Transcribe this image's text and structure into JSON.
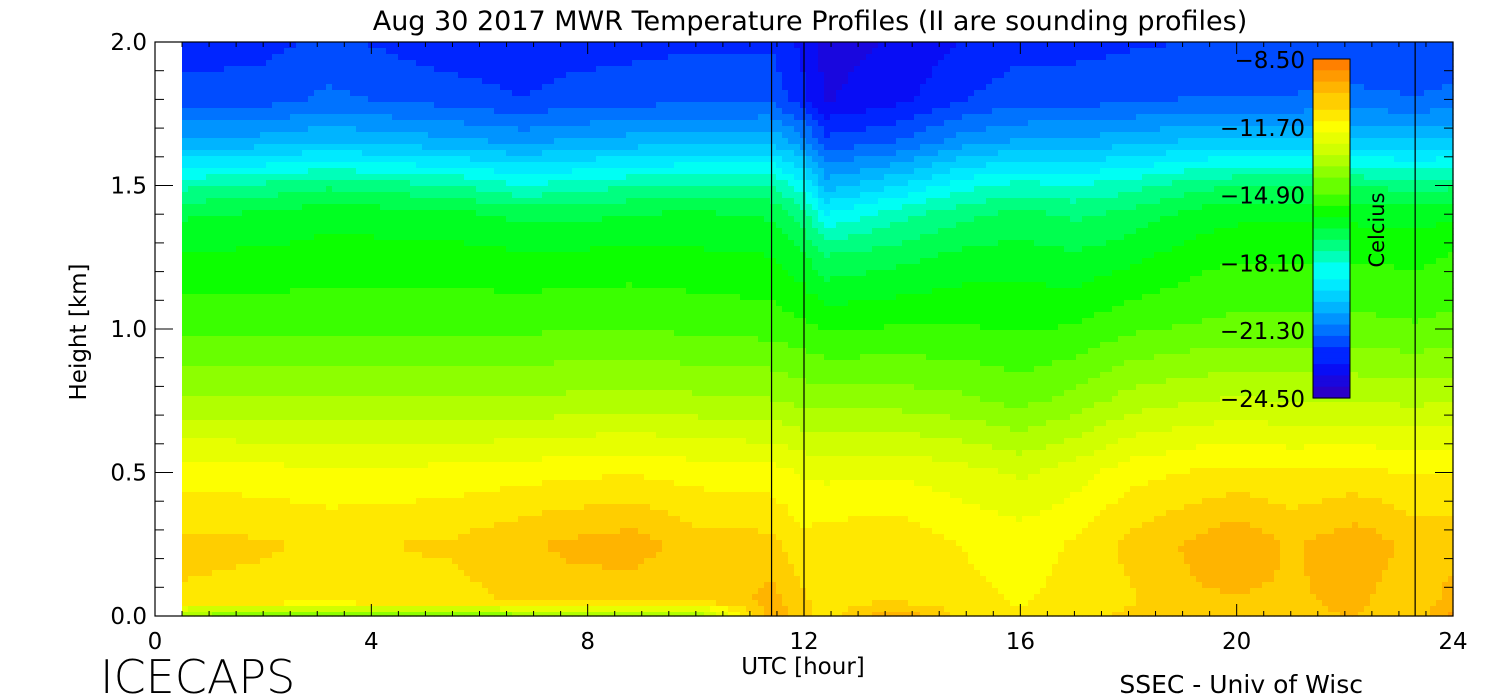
{
  "chart_data": {
    "type": "heatmap",
    "title": "Aug 30 2017 MWR Temperature Profiles (II are sounding profiles)",
    "xlabel": "UTC [hour]",
    "ylabel": "Height [km]",
    "xlim": [
      0,
      24
    ],
    "ylim": [
      0,
      2
    ],
    "x_ticks": [
      "0",
      "4",
      "8",
      "12",
      "16",
      "20",
      "24"
    ],
    "y_ticks": [
      "0.0",
      "0.5",
      "1.0",
      "1.5",
      "2.0"
    ],
    "data_x_range": [
      0.5,
      24
    ],
    "sounding_times": [
      11.4,
      12.0,
      23.3
    ],
    "colorbar": {
      "label": "Celcius",
      "min": -24.5,
      "max": -8.5,
      "ticks": [
        "-8.50",
        "-11.70",
        "-14.90",
        "-18.10",
        "-21.30",
        "-24.50"
      ],
      "placement": "top-right inside plot"
    },
    "colorscale": [
      "#2a00c8",
      "#0010ff",
      "#0070ff",
      "#00c0ff",
      "#00ffff",
      "#00ff70",
      "#00ff00",
      "#70ff00",
      "#c8ff00",
      "#ffff00",
      "#ffc000",
      "#ff8000"
    ],
    "hours": [
      0.5,
      2,
      3.2,
      4.2,
      5.5,
      6.8,
      7.6,
      8.8,
      10,
      11.4,
      12,
      12.4,
      13.7,
      15,
      16,
      17,
      18,
      19.2,
      20,
      21,
      22.2,
      23.3,
      24
    ],
    "heights_km": [
      0,
      0.05,
      0.25,
      0.5,
      0.75,
      1.0,
      1.25,
      1.4,
      1.5,
      1.65,
      1.8,
      2.0
    ],
    "temperature_c": [
      [
        -14.0,
        -10.9,
        -10.6,
        -11.6,
        -13.5,
        -14.9,
        -15.8,
        -16.6,
        -17.8,
        -20.3,
        -22.0,
        -22.5
      ],
      [
        -14.2,
        -11.0,
        -10.7,
        -11.7,
        -13.6,
        -14.9,
        -15.8,
        -16.4,
        -17.5,
        -20.2,
        -21.9,
        -22.4
      ],
      [
        -14.3,
        -11.2,
        -10.9,
        -11.8,
        -13.6,
        -14.9,
        -15.7,
        -16.1,
        -17.2,
        -19.9,
        -21.5,
        -22.1
      ],
      [
        -14.1,
        -10.9,
        -10.8,
        -11.8,
        -13.6,
        -14.9,
        -15.7,
        -16.2,
        -17.4,
        -20.1,
        -21.7,
        -22.3
      ],
      [
        -14.2,
        -11.0,
        -10.7,
        -11.7,
        -13.6,
        -14.9,
        -15.7,
        -16.3,
        -17.6,
        -20.3,
        -21.9,
        -22.6
      ],
      [
        -14.1,
        -10.7,
        -10.3,
        -11.6,
        -13.6,
        -14.9,
        -15.8,
        -16.7,
        -18.2,
        -20.6,
        -22.2,
        -22.7
      ],
      [
        -14.0,
        -10.5,
        -10.1,
        -11.5,
        -13.5,
        -14.8,
        -15.8,
        -16.7,
        -18.0,
        -20.4,
        -22.0,
        -22.5
      ],
      [
        -13.9,
        -10.6,
        -9.9,
        -11.4,
        -13.4,
        -14.8,
        -15.7,
        -16.5,
        -17.7,
        -20.2,
        -21.9,
        -22.4
      ],
      [
        -14.0,
        -10.8,
        -10.5,
        -11.6,
        -13.5,
        -14.9,
        -15.8,
        -16.4,
        -17.5,
        -20.1,
        -21.8,
        -22.3
      ],
      [
        -9.8,
        -10.0,
        -10.6,
        -11.7,
        -13.6,
        -15.0,
        -15.9,
        -16.6,
        -17.6,
        -20.0,
        -21.8,
        -22.3
      ],
      [
        -10.5,
        -10.7,
        -11.2,
        -12.0,
        -13.8,
        -15.2,
        -16.4,
        -17.4,
        -18.6,
        -20.8,
        -22.6,
        -23.0
      ],
      [
        -11.2,
        -11.0,
        -11.0,
        -12.1,
        -13.9,
        -15.4,
        -17.0,
        -18.8,
        -20.2,
        -22.0,
        -23.4,
        -23.6
      ],
      [
        -9.6,
        -10.8,
        -10.9,
        -12.0,
        -13.9,
        -15.3,
        -16.7,
        -17.9,
        -19.4,
        -21.6,
        -23.0,
        -23.3
      ],
      [
        -11.0,
        -11.2,
        -11.4,
        -12.3,
        -14.1,
        -15.3,
        -16.3,
        -17.2,
        -18.4,
        -20.7,
        -22.2,
        -22.7
      ],
      [
        -11.3,
        -11.4,
        -11.6,
        -12.6,
        -14.4,
        -15.4,
        -16.2,
        -16.9,
        -18.0,
        -20.4,
        -21.9,
        -22.4
      ],
      [
        -11.1,
        -11.2,
        -11.3,
        -12.2,
        -14.0,
        -15.3,
        -16.4,
        -17.2,
        -18.2,
        -20.3,
        -21.9,
        -22.4
      ],
      [
        -10.6,
        -10.9,
        -10.6,
        -11.6,
        -13.4,
        -14.9,
        -16.1,
        -16.9,
        -17.9,
        -20.1,
        -21.8,
        -22.3
      ],
      [
        -10.3,
        -10.3,
        -10.1,
        -11.3,
        -13.1,
        -14.7,
        -15.6,
        -16.3,
        -17.3,
        -19.8,
        -21.6,
        -22.2
      ],
      [
        -10.2,
        -10.3,
        -9.7,
        -11.2,
        -13.0,
        -14.6,
        -15.4,
        -16.1,
        -17.1,
        -19.7,
        -21.6,
        -22.1
      ],
      [
        -10.3,
        -10.3,
        -10.3,
        -11.3,
        -13.1,
        -14.6,
        -15.4,
        -16.1,
        -17.1,
        -19.7,
        -21.6,
        -22.1
      ],
      [
        -10.2,
        -10.1,
        -9.8,
        -11.2,
        -13.1,
        -14.6,
        -15.4,
        -16.1,
        -17.1,
        -19.7,
        -21.5,
        -22.1
      ],
      [
        -10.5,
        -10.6,
        -10.4,
        -11.4,
        -13.2,
        -14.7,
        -15.5,
        -16.2,
        -17.3,
        -19.8,
        -21.6,
        -22.2
      ],
      [
        -9.5,
        -10.0,
        -10.4,
        -11.4,
        -13.1,
        -14.6,
        -15.3,
        -16.0,
        -17.2,
        -19.7,
        -21.5,
        -22.0
      ]
    ]
  },
  "footer": {
    "left_text": "ICECAPS",
    "right_text": "SSEC - Univ of Wisc"
  }
}
